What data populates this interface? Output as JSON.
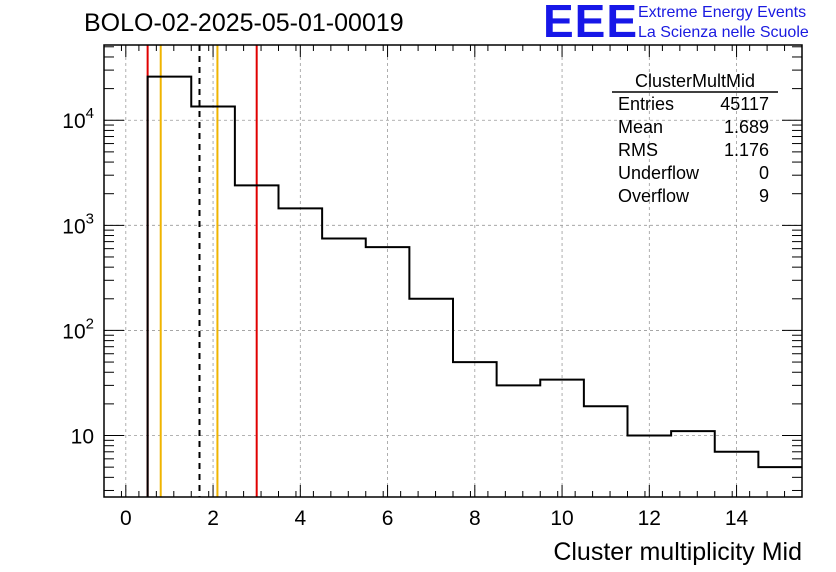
{
  "header": {
    "run_title": "BOLO-02-2025-05-01-00019"
  },
  "logo": {
    "mark": "EEE",
    "line1": "Extreme Energy Events",
    "line2": "La Scienza nelle Scuole",
    "color": "#1717e8"
  },
  "stats_box": {
    "title": "ClusterMultMid",
    "rows": [
      {
        "label": "Entries",
        "value": "45117"
      },
      {
        "label": "Mean",
        "value": "1.689"
      },
      {
        "label": "RMS",
        "value": "1.176"
      },
      {
        "label": "Underflow",
        "value": "0"
      },
      {
        "label": "Overflow",
        "value": "9"
      }
    ]
  },
  "chart_data": {
    "type": "histogram",
    "xlabel": "Cluster multiplicity Mid",
    "ylabel": "",
    "xlim": [
      -0.5,
      15.5
    ],
    "ylim": [
      2.6,
      52000
    ],
    "yscale": "log",
    "grid": true,
    "bin_edges": [
      0.5,
      1.5,
      2.5,
      3.5,
      4.5,
      5.5,
      6.5,
      7.5,
      8.5,
      9.5,
      10.5,
      11.5,
      12.5,
      13.5,
      14.5,
      15.5
    ],
    "values": [
      26000,
      13500,
      2400,
      1450,
      750,
      620,
      200,
      50,
      30,
      34,
      19,
      10,
      11,
      7,
      5
    ],
    "x_ticks": [
      0,
      2,
      4,
      6,
      8,
      10,
      12,
      14
    ],
    "x_tick_labels": [
      "0",
      "2",
      "4",
      "6",
      "8",
      "10",
      "12",
      "14"
    ],
    "y_ticks": [
      10,
      100,
      1000,
      10000
    ],
    "y_tick_labels": [
      {
        "base": "10",
        "exp": ""
      },
      {
        "base": "10",
        "exp": "2"
      },
      {
        "base": "10",
        "exp": "3"
      },
      {
        "base": "10",
        "exp": "4"
      }
    ],
    "vertical_lines": [
      {
        "x": 0.5,
        "color": "#e00000",
        "style": "solid"
      },
      {
        "x": 0.8,
        "color": "#f0b400",
        "style": "solid"
      },
      {
        "x": 1.689,
        "color": "#000000",
        "style": "dashed"
      },
      {
        "x": 2.1,
        "color": "#f0b400",
        "style": "solid"
      },
      {
        "x": 3.0,
        "color": "#e00000",
        "style": "solid"
      }
    ]
  }
}
